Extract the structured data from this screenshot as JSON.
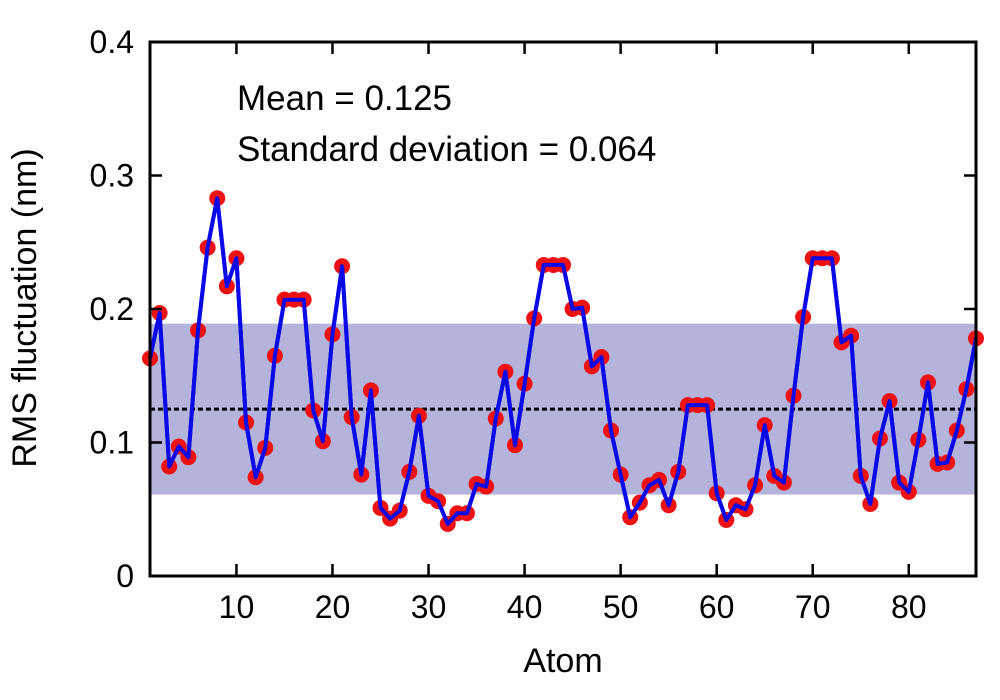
{
  "chart_data": {
    "type": "line",
    "xlabel": "Atom",
    "ylabel": "RMS fluctuation (nm)",
    "xlim": [
      1,
      87
    ],
    "ylim": [
      0,
      0.4
    ],
    "x_ticks": [
      10,
      20,
      30,
      40,
      50,
      60,
      70,
      80
    ],
    "y_ticks": [
      0,
      0.1,
      0.2,
      0.3,
      0.4
    ],
    "y_tick_labels": [
      "0",
      "0.1",
      "0.2",
      "0.3",
      "0.4"
    ],
    "annotations": [
      "Mean = 0.125",
      "Standard deviation = 0.064"
    ],
    "mean": 0.125,
    "std_band": [
      0.061,
      0.189
    ],
    "grid": false,
    "colors": {
      "line": "#0a0ae6",
      "marker": "#ee1111",
      "band": "#b3b3dc",
      "mean_line": "#000000"
    },
    "series": [
      {
        "x": [
          1,
          2,
          3,
          4,
          5,
          6,
          7,
          8,
          9,
          10,
          11,
          12,
          13,
          14,
          15,
          16,
          17,
          18,
          19,
          20,
          21,
          22,
          23,
          24,
          25,
          26,
          27,
          28,
          29,
          30,
          31,
          32,
          33,
          34,
          35,
          36,
          37,
          38,
          39,
          40,
          41,
          42,
          43,
          44,
          45,
          46,
          47,
          48,
          49,
          50,
          51,
          52,
          53,
          54,
          55,
          56,
          57,
          58,
          59,
          60,
          61,
          62,
          63,
          64,
          65,
          66,
          67,
          68,
          69,
          70,
          71,
          72,
          73,
          74,
          75,
          76,
          77,
          78,
          79,
          80,
          81,
          82,
          83,
          84,
          85,
          86,
          87
        ],
        "y": [
          0.163,
          0.197,
          0.082,
          0.097,
          0.089,
          0.184,
          0.246,
          0.283,
          0.217,
          0.238,
          0.115,
          0.074,
          0.096,
          0.165,
          0.207,
          0.207,
          0.207,
          0.124,
          0.101,
          0.181,
          0.232,
          0.119,
          0.076,
          0.139,
          0.051,
          0.043,
          0.049,
          0.078,
          0.12,
          0.06,
          0.056,
          0.039,
          0.047,
          0.047,
          0.069,
          0.067,
          0.118,
          0.153,
          0.098,
          0.144,
          0.193,
          0.233,
          0.233,
          0.233,
          0.2,
          0.201,
          0.157,
          0.164,
          0.109,
          0.076,
          0.044,
          0.055,
          0.068,
          0.072,
          0.053,
          0.078,
          0.128,
          0.128,
          0.128,
          0.062,
          0.042,
          0.053,
          0.05,
          0.068,
          0.113,
          0.075,
          0.07,
          0.135,
          0.194,
          0.238,
          0.238,
          0.238,
          0.175,
          0.18,
          0.075,
          0.054,
          0.103,
          0.131,
          0.07,
          0.063,
          0.102,
          0.145,
          0.084,
          0.085,
          0.109,
          0.14,
          0.178
        ]
      }
    ]
  }
}
